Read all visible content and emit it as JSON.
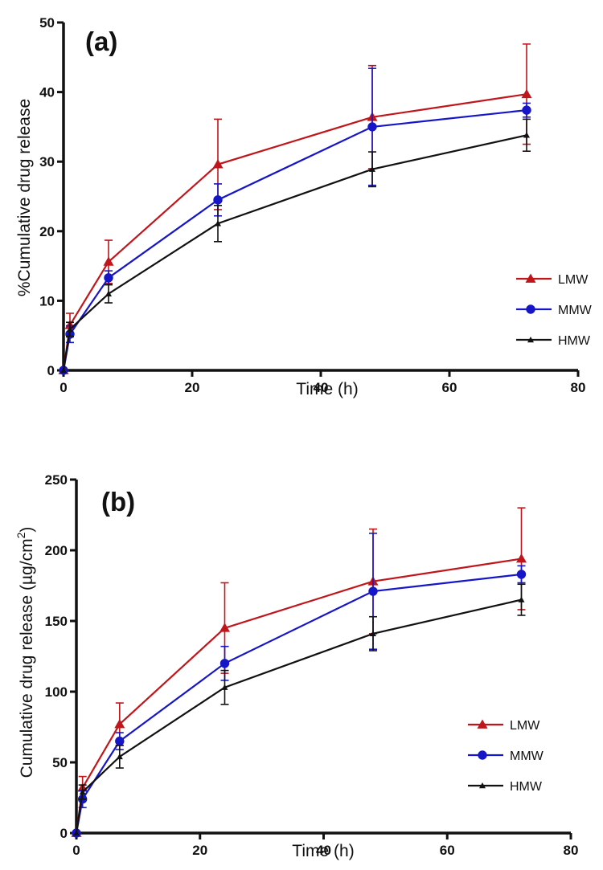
{
  "figure": {
    "colors": {
      "LMW": "#c0161b",
      "MMW": "#1616c8",
      "HMW": "#111111"
    }
  },
  "chart_data": [
    {
      "type": "line",
      "panel_label": "(a)",
      "xlabel": "Time (h)",
      "ylabel": "%Cumulative drug release",
      "xlim": [
        0,
        80
      ],
      "ylim": [
        0,
        50
      ],
      "xticks": [
        0,
        20,
        40,
        60,
        80
      ],
      "yticks": [
        0,
        10,
        20,
        30,
        40,
        50
      ],
      "legend_position": "center-right",
      "x": [
        0,
        1,
        7,
        24,
        48,
        72
      ],
      "series": [
        {
          "name": "LMW",
          "marker": "triangle",
          "values": [
            0,
            6.5,
            15.6,
            29.6,
            36.4,
            39.7
          ],
          "errors": [
            0,
            1.7,
            3.1,
            6.5,
            7.4,
            7.2
          ]
        },
        {
          "name": "MMW",
          "marker": "circle",
          "values": [
            0,
            5.2,
            13.3,
            24.5,
            35.0,
            37.4
          ],
          "errors": [
            0,
            1.2,
            1.0,
            2.3,
            8.4,
            1.0
          ]
        },
        {
          "name": "HMW",
          "marker": "small-triangle",
          "values": [
            0,
            5.9,
            11.0,
            21.1,
            28.9,
            33.8
          ],
          "errors": [
            0,
            1.0,
            1.3,
            2.6,
            2.5,
            2.3
          ]
        }
      ]
    },
    {
      "type": "line",
      "panel_label": "(b)",
      "xlabel": "Time (h)",
      "ylabel": "Cumulative drug release (µg/cm",
      "ylabel_sup": "2",
      "ylabel_end": ")",
      "xlim": [
        0,
        80
      ],
      "ylim": [
        0,
        250
      ],
      "xticks": [
        0,
        20,
        40,
        60,
        80
      ],
      "yticks": [
        0,
        50,
        100,
        150,
        200,
        250
      ],
      "legend_position": "bottom-right",
      "x": [
        0,
        1,
        7,
        24,
        48,
        72
      ],
      "series": [
        {
          "name": "LMW",
          "marker": "triangle",
          "values": [
            0,
            32,
            77,
            145,
            178,
            194
          ],
          "errors": [
            0,
            8,
            15,
            32,
            37,
            36
          ]
        },
        {
          "name": "MMW",
          "marker": "circle",
          "values": [
            0,
            24,
            65,
            120,
            171,
            183
          ],
          "errors": [
            0,
            6,
            6,
            12,
            41,
            6
          ]
        },
        {
          "name": "HMW",
          "marker": "small-triangle",
          "values": [
            0,
            29,
            54,
            103,
            141,
            165
          ],
          "errors": [
            0,
            5,
            8,
            12,
            12,
            11
          ]
        }
      ]
    }
  ]
}
